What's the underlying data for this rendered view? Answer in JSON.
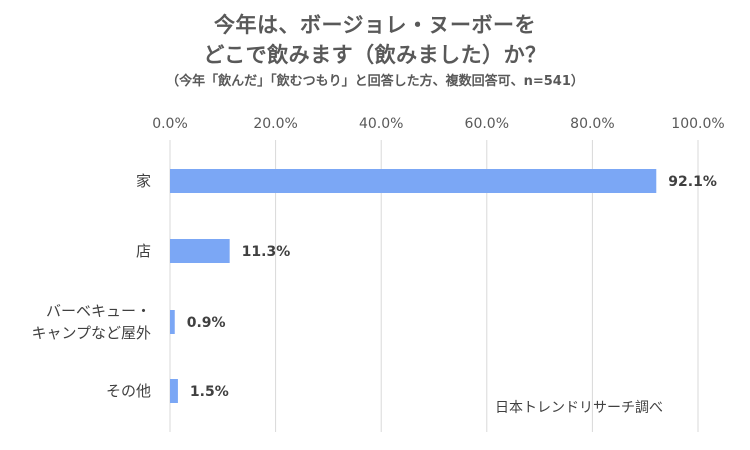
{
  "chart_data": {
    "type": "bar",
    "orientation": "horizontal",
    "title_lines": [
      "今年は、ボージョレ・ヌーボーを",
      "どこで飲みます（飲みました）か？"
    ],
    "subtitle": "（今年「飲んだ」「飲むつもり」と回答した方、複数回答可、n=541）",
    "categories": [
      [
        "家"
      ],
      [
        "店"
      ],
      [
        "バーベキュー・",
        "キャンプなど屋外"
      ],
      [
        "その他"
      ]
    ],
    "values": [
      92.1,
      11.3,
      0.9,
      1.5
    ],
    "value_labels": [
      "92.1%",
      "11.3%",
      "0.9%",
      "1.5%"
    ],
    "xlim": [
      0,
      100
    ],
    "xticks": [
      0,
      20,
      40,
      60,
      80,
      100
    ],
    "xtick_labels": [
      "0.0%",
      "20.0%",
      "40.0%",
      "60.0%",
      "80.0%",
      "100.0%"
    ],
    "axis_position": "top",
    "grid": true,
    "xlabel": "",
    "ylabel": "",
    "bar_color": "#7ba7f5",
    "grid_color": "#d9d9d9"
  },
  "source_note": "日本トレンドリサーチ調べ"
}
